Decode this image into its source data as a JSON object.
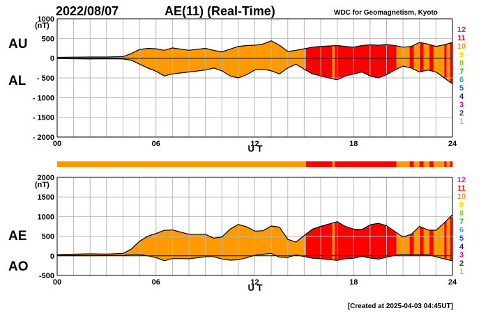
{
  "header": {
    "date": "2022/08/07",
    "title": "AE(11) (Real-Time)",
    "org": "WDC for Geomagnetism, Kyoto"
  },
  "footer": {
    "created": "[Created at 2025-04-03 04:45UT]"
  },
  "legend": {
    "levels": [
      "12",
      "11",
      "10",
      "9",
      "8",
      "7",
      "6",
      "5",
      "4",
      "3",
      "2",
      "1"
    ],
    "colors": [
      "#ff1493",
      "#ff0000",
      "#ff9900",
      "#ffd700",
      "#80e000",
      "#00d000",
      "#00c0d0",
      "#0060ff",
      "#1818b0",
      "#c000c0",
      "#303030",
      "#b0b0b0"
    ]
  },
  "chart_data": [
    {
      "type": "area",
      "upper_label": "AU",
      "lower_label": "AL",
      "unit_label": "(nT)",
      "xlabel": "U T",
      "xlim": [
        0,
        24
      ],
      "ylim": [
        -2000,
        1000
      ],
      "yticks": [
        "1000",
        "500",
        "0",
        "- 500",
        "- 1000",
        "- 1500",
        "- 2000"
      ],
      "xticks": [
        "00",
        "06",
        "12",
        "18",
        "24"
      ],
      "grid": true,
      "x": [
        0,
        1,
        2,
        3,
        4,
        4.5,
        5,
        5.5,
        6,
        6.5,
        7,
        8,
        9,
        9.5,
        10,
        10.5,
        11,
        11.5,
        12,
        12.5,
        13,
        13.5,
        14,
        14.5,
        15,
        15.5,
        16,
        16.5,
        17,
        17.5,
        18,
        18.5,
        19,
        19.5,
        20,
        20.5,
        21,
        21.5,
        22,
        22.5,
        23,
        23.5,
        24
      ],
      "series": [
        {
          "values": [
            20,
            25,
            30,
            30,
            40,
            120,
            220,
            250,
            240,
            200,
            260,
            200,
            250,
            200,
            160,
            230,
            300,
            320,
            330,
            360,
            440,
            330,
            170,
            200,
            240,
            280,
            300,
            310,
            320,
            300,
            280,
            320,
            340,
            330,
            350,
            320,
            280,
            300,
            400,
            360,
            300,
            340,
            400
          ]
        },
        {
          "values": [
            -10,
            -15,
            -20,
            -15,
            -20,
            -50,
            -150,
            -250,
            -330,
            -450,
            -400,
            -350,
            -300,
            -250,
            -320,
            -450,
            -500,
            -420,
            -300,
            -280,
            -320,
            -400,
            -250,
            -150,
            -280,
            -400,
            -450,
            -500,
            -550,
            -450,
            -400,
            -350,
            -450,
            -500,
            -420,
            -300,
            -200,
            -250,
            -350,
            -300,
            -350,
            -500,
            -650
          ]
        }
      ]
    },
    {
      "type": "area",
      "upper_label": "AE",
      "lower_label": "AO",
      "unit_label": "(nT)",
      "xlabel": "U T",
      "xlim": [
        0,
        24
      ],
      "ylim": [
        -500,
        2000
      ],
      "yticks": [
        "2000",
        "1500",
        "1000",
        "500",
        "0",
        "-500"
      ],
      "xticks": [
        "00",
        "06",
        "12",
        "18",
        "24"
      ],
      "grid": true,
      "x": [
        0,
        1,
        2,
        3,
        4,
        4.5,
        5,
        5.5,
        6,
        6.5,
        7,
        8,
        9,
        9.5,
        10,
        10.5,
        11,
        11.5,
        12,
        12.5,
        13,
        13.5,
        14,
        14.5,
        15,
        15.5,
        16,
        16.5,
        17,
        17.5,
        18,
        18.5,
        19,
        19.5,
        20,
        20.5,
        21,
        21.5,
        22,
        22.5,
        23,
        23.5,
        24
      ],
      "series": [
        {
          "values": [
            30,
            40,
            50,
            45,
            60,
            170,
            370,
            500,
            570,
            650,
            660,
            550,
            550,
            450,
            480,
            680,
            800,
            740,
            630,
            640,
            760,
            730,
            420,
            350,
            520,
            680,
            750,
            810,
            870,
            750,
            680,
            670,
            790,
            830,
            770,
            620,
            480,
            550,
            750,
            660,
            650,
            840,
            1050
          ]
        },
        {
          "values": [
            5,
            5,
            5,
            8,
            10,
            35,
            35,
            0,
            -45,
            -125,
            -70,
            -75,
            -25,
            -25,
            -80,
            -110,
            -100,
            -50,
            15,
            40,
            60,
            -35,
            -40,
            25,
            -20,
            -60,
            -75,
            -95,
            -115,
            -75,
            -60,
            -15,
            -55,
            -85,
            -35,
            10,
            40,
            25,
            25,
            30,
            -25,
            -80,
            -125
          ]
        }
      ]
    }
  ],
  "activity_bands": [
    {
      "from": 0,
      "to": 15.1,
      "level": "10",
      "color": "#ff9900"
    },
    {
      "from": 15.1,
      "to": 16.7,
      "level": "11",
      "color": "#ff0000"
    },
    {
      "from": 16.7,
      "to": 16.85,
      "level": "10",
      "color": "#ff9900"
    },
    {
      "from": 16.85,
      "to": 20.6,
      "level": "11",
      "color": "#ff0000"
    },
    {
      "from": 20.6,
      "to": 21.4,
      "level": "10",
      "color": "#ff9900"
    },
    {
      "from": 21.4,
      "to": 21.65,
      "level": "11",
      "color": "#ff0000"
    },
    {
      "from": 21.65,
      "to": 22.0,
      "level": "10",
      "color": "#ff9900"
    },
    {
      "from": 22.0,
      "to": 22.25,
      "level": "11",
      "color": "#ff0000"
    },
    {
      "from": 22.25,
      "to": 22.6,
      "level": "10",
      "color": "#ff9900"
    },
    {
      "from": 22.6,
      "to": 22.85,
      "level": "11",
      "color": "#ff0000"
    },
    {
      "from": 22.85,
      "to": 23.5,
      "level": "10",
      "color": "#ff9900"
    },
    {
      "from": 23.5,
      "to": 23.65,
      "level": "11",
      "color": "#ff0000"
    },
    {
      "from": 23.65,
      "to": 23.85,
      "level": "10",
      "color": "#ff9900"
    },
    {
      "from": 23.85,
      "to": 24,
      "level": "11",
      "color": "#ff0000"
    }
  ]
}
